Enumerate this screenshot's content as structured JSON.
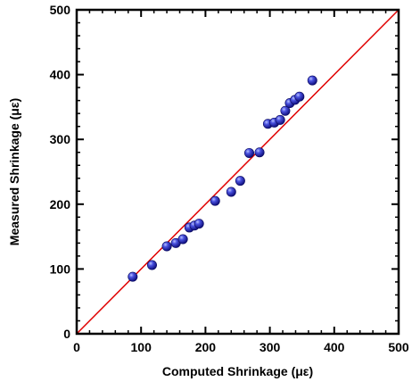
{
  "chart_data": {
    "type": "scatter",
    "title": "",
    "xlabel": "Computed Shrinkage (με)",
    "ylabel": "Measured Shrinkage (με)",
    "xlim": [
      0,
      500
    ],
    "ylim": [
      0,
      500
    ],
    "xticks": [
      "0",
      "100",
      "200",
      "300",
      "400",
      "500"
    ],
    "yticks": [
      "0",
      "100",
      "200",
      "300",
      "400",
      "500"
    ],
    "grid": false,
    "legend": "none",
    "line": {
      "x": [
        0,
        500
      ],
      "y": [
        0,
        500
      ],
      "color": "#e00000"
    },
    "marker_color": "#1a1aa8",
    "points": [
      {
        "x": 87,
        "y": 88
      },
      {
        "x": 117,
        "y": 106
      },
      {
        "x": 140,
        "y": 135
      },
      {
        "x": 154,
        "y": 140
      },
      {
        "x": 165,
        "y": 146
      },
      {
        "x": 175,
        "y": 164
      },
      {
        "x": 183,
        "y": 167
      },
      {
        "x": 190,
        "y": 170
      },
      {
        "x": 215,
        "y": 205
      },
      {
        "x": 240,
        "y": 219
      },
      {
        "x": 254,
        "y": 236
      },
      {
        "x": 268,
        "y": 279
      },
      {
        "x": 284,
        "y": 280
      },
      {
        "x": 297,
        "y": 324
      },
      {
        "x": 307,
        "y": 326
      },
      {
        "x": 316,
        "y": 330
      },
      {
        "x": 324,
        "y": 344
      },
      {
        "x": 331,
        "y": 356
      },
      {
        "x": 339,
        "y": 361
      },
      {
        "x": 346,
        "y": 366
      },
      {
        "x": 366,
        "y": 391
      }
    ]
  }
}
